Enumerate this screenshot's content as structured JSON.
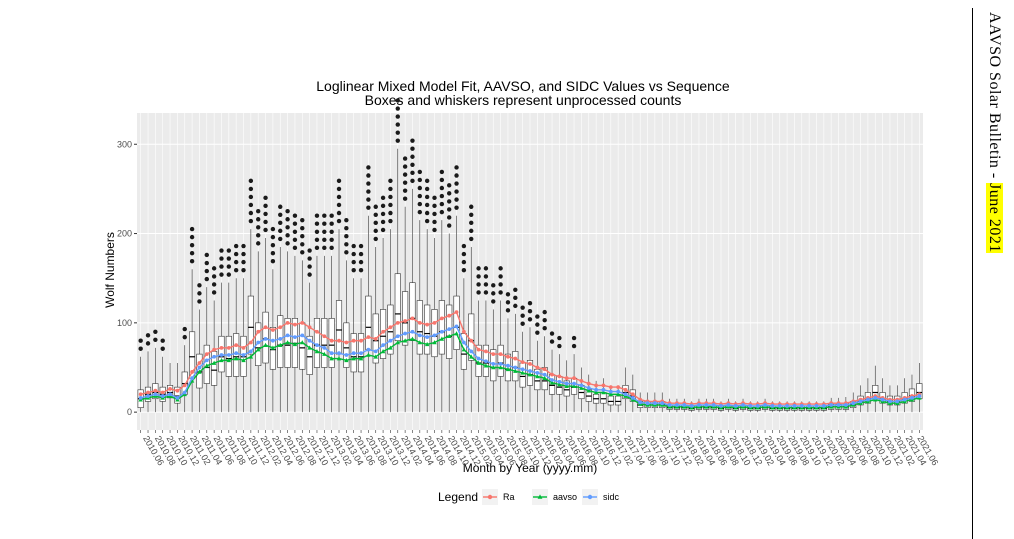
{
  "chart_data": {
    "type": "box",
    "title": "Loglinear Mixed Model Fit, AAVSO, and SIDC Values vs Sequence",
    "subtitle": "Boxes and whiskers represent unprocessed counts",
    "xlabel": "Month by Year (yyyy.mm)",
    "ylabel": "Wolf Numbers",
    "ylim": [
      -20,
      335
    ],
    "yticks": [
      0,
      100,
      200,
      300
    ],
    "grid": true,
    "legend_position": "bottom",
    "legend_title": "Legend",
    "legend": [
      {
        "name": "Ra",
        "color": "#f8766d"
      },
      {
        "name": "aavso",
        "color": "#00ba38"
      },
      {
        "name": "sidc",
        "color": "#619cff"
      }
    ],
    "x_tick_labels": [
      "2010.06",
      "2010.08",
      "2010.10",
      "2010.12",
      "2011.02",
      "2011.04",
      "2011.06",
      "2011.08",
      "2011.10",
      "2011.12",
      "2012.02",
      "2012.04",
      "2012.06",
      "2012.08",
      "2012.10",
      "2012.12",
      "2013.02",
      "2013.04",
      "2013.06",
      "2013.08",
      "2013.10",
      "2013.12",
      "2014.02",
      "2014.04",
      "2014.06",
      "2014.08",
      "2014.10",
      "2014.12",
      "2015.02",
      "2015.04",
      "2015.06",
      "2015.08",
      "2015.10",
      "2015.12",
      "2016.02",
      "2016.04",
      "2016.06",
      "2016.08",
      "2016.10",
      "2016.12",
      "2017.02",
      "2017.04",
      "2017.06",
      "2017.08",
      "2017.10",
      "2017.12",
      "2018.02",
      "2018.04",
      "2018.06",
      "2018.08",
      "2018.10",
      "2018.12",
      "2019.02",
      "2019.04",
      "2019.06",
      "2019.08",
      "2019.10",
      "2019.12",
      "2020.02",
      "2020.04",
      "2020.06",
      "2020.08",
      "2020.10",
      "2020.12",
      "2021.02",
      "2021.04",
      "2021.06"
    ],
    "boxes": {
      "q1": [
        5,
        12,
        15,
        12,
        16,
        10,
        20,
        38,
        27,
        32,
        30,
        45,
        40,
        40,
        40,
        65,
        52,
        55,
        48,
        50,
        50,
        50,
        48,
        42,
        50,
        50,
        50,
        65,
        50,
        45,
        45,
        70,
        55,
        60,
        65,
        80,
        75,
        80,
        65,
        65,
        62,
        65,
        60,
        70,
        48,
        58,
        40,
        40,
        35,
        40,
        35,
        35,
        28,
        30,
        25,
        25,
        20,
        20,
        18,
        20,
        15,
        12,
        10,
        10,
        8,
        8,
        15,
        12,
        5,
        5,
        5,
        5,
        3,
        3,
        3,
        2,
        3,
        3,
        3,
        2,
        3,
        2,
        3,
        2,
        2,
        3,
        2,
        2,
        2,
        2,
        2,
        2,
        2,
        2,
        3,
        3,
        3,
        5,
        8,
        10,
        15,
        10,
        8,
        8,
        10,
        12,
        15
      ],
      "median": [
        15,
        20,
        22,
        20,
        22,
        18,
        32,
        62,
        45,
        50,
        47,
        62,
        60,
        62,
        62,
        95,
        72,
        82,
        70,
        75,
        75,
        77,
        72,
        62,
        75,
        75,
        75,
        92,
        72,
        62,
        62,
        95,
        80,
        85,
        90,
        110,
        100,
        105,
        90,
        88,
        85,
        90,
        85,
        95,
        65,
        80,
        55,
        55,
        50,
        55,
        48,
        50,
        40,
        42,
        35,
        35,
        30,
        28,
        25,
        28,
        22,
        18,
        15,
        15,
        12,
        12,
        22,
        18,
        8,
        8,
        8,
        8,
        5,
        5,
        5,
        4,
        5,
        5,
        5,
        4,
        5,
        4,
        5,
        4,
        4,
        5,
        4,
        4,
        4,
        4,
        4,
        4,
        4,
        4,
        6,
        6,
        6,
        8,
        12,
        15,
        22,
        15,
        12,
        12,
        15,
        18,
        22
      ],
      "q3": [
        25,
        28,
        32,
        28,
        30,
        28,
        45,
        90,
        65,
        75,
        68,
        85,
        85,
        88,
        85,
        130,
        100,
        112,
        95,
        108,
        105,
        105,
        100,
        85,
        105,
        105,
        105,
        125,
        100,
        88,
        88,
        130,
        110,
        115,
        120,
        155,
        135,
        145,
        125,
        120,
        115,
        125,
        120,
        130,
        88,
        110,
        75,
        75,
        70,
        75,
        65,
        68,
        55,
        58,
        48,
        50,
        42,
        40,
        35,
        38,
        30,
        25,
        20,
        22,
        18,
        18,
        30,
        25,
        12,
        12,
        12,
        12,
        8,
        8,
        8,
        7,
        8,
        8,
        8,
        7,
        8,
        7,
        8,
        7,
        7,
        8,
        7,
        7,
        7,
        7,
        7,
        7,
        7,
        7,
        9,
        9,
        10,
        12,
        18,
        22,
        30,
        22,
        18,
        18,
        22,
        26,
        32
      ],
      "upper": [
        62,
        68,
        72,
        62,
        55,
        55,
        75,
        160,
        115,
        140,
        125,
        145,
        145,
        150,
        150,
        205,
        180,
        195,
        160,
        185,
        180,
        175,
        170,
        145,
        175,
        175,
        175,
        205,
        170,
        150,
        150,
        220,
        185,
        195,
        205,
        295,
        230,
        250,
        215,
        205,
        195,
        215,
        200,
        220,
        150,
        185,
        125,
        125,
        115,
        125,
        105,
        110,
        90,
        95,
        80,
        85,
        70,
        65,
        58,
        65,
        50,
        42,
        35,
        38,
        30,
        30,
        50,
        42,
        22,
        22,
        22,
        22,
        15,
        15,
        15,
        12,
        15,
        15,
        15,
        12,
        15,
        12,
        15,
        12,
        12,
        15,
        12,
        12,
        12,
        12,
        12,
        12,
        12,
        12,
        16,
        16,
        17,
        22,
        30,
        38,
        52,
        38,
        30,
        30,
        38,
        42,
        55
      ]
    },
    "series": [
      {
        "name": "Ra",
        "values": [
          20,
          22,
          24,
          22,
          26,
          24,
          30,
          45,
          55,
          65,
          70,
          72,
          72,
          75,
          72,
          78,
          90,
          95,
          92,
          95,
          100,
          98,
          100,
          95,
          90,
          85,
          80,
          80,
          78,
          80,
          80,
          84,
          82,
          90,
          95,
          100,
          102,
          105,
          100,
          98,
          100,
          105,
          108,
          112,
          90,
          80,
          70,
          68,
          65,
          65,
          62,
          60,
          56,
          54,
          50,
          48,
          42,
          40,
          38,
          38,
          35,
          32,
          30,
          30,
          28,
          28,
          25,
          20,
          14,
          12,
          12,
          12,
          10,
          10,
          10,
          9,
          10,
          10,
          10,
          9,
          10,
          9,
          10,
          9,
          9,
          10,
          9,
          9,
          9,
          9,
          9,
          9,
          9,
          9,
          10,
          10,
          10,
          12,
          14,
          16,
          18,
          16,
          14,
          14,
          16,
          18,
          20
        ]
      },
      {
        "name": "aavso",
        "values": [
          14,
          16,
          18,
          16,
          18,
          14,
          20,
          35,
          45,
          52,
          55,
          58,
          58,
          60,
          58,
          62,
          70,
          75,
          72,
          75,
          78,
          76,
          78,
          72,
          68,
          65,
          60,
          60,
          58,
          60,
          60,
          64,
          62,
          68,
          72,
          78,
          80,
          82,
          78,
          76,
          78,
          82,
          85,
          88,
          70,
          62,
          55,
          52,
          50,
          50,
          48,
          46,
          44,
          42,
          40,
          38,
          33,
          31,
          29,
          29,
          27,
          24,
          22,
          22,
          20,
          20,
          18,
          14,
          9,
          8,
          8,
          8,
          6,
          6,
          6,
          5,
          6,
          6,
          6,
          5,
          6,
          5,
          6,
          5,
          5,
          6,
          5,
          5,
          5,
          5,
          5,
          5,
          5,
          5,
          6,
          6,
          6,
          8,
          10,
          12,
          14,
          12,
          10,
          10,
          12,
          14,
          16
        ]
      },
      {
        "name": "sidc",
        "values": [
          16,
          18,
          20,
          18,
          20,
          16,
          22,
          38,
          50,
          58,
          62,
          64,
          64,
          66,
          64,
          68,
          78,
          82,
          80,
          82,
          86,
          84,
          86,
          80,
          75,
          72,
          66,
          66,
          64,
          66,
          66,
          70,
          68,
          75,
          80,
          85,
          88,
          90,
          86,
          84,
          86,
          90,
          93,
          96,
          78,
          68,
          60,
          57,
          54,
          54,
          52,
          50,
          48,
          46,
          44,
          42,
          36,
          34,
          32,
          32,
          30,
          27,
          25,
          25,
          23,
          23,
          20,
          16,
          11,
          10,
          10,
          10,
          8,
          8,
          8,
          7,
          8,
          8,
          8,
          7,
          8,
          7,
          8,
          7,
          7,
          8,
          7,
          7,
          7,
          7,
          7,
          7,
          7,
          7,
          8,
          8,
          8,
          10,
          12,
          14,
          16,
          14,
          12,
          12,
          14,
          16,
          18
        ]
      }
    ]
  },
  "sidebar": {
    "text_plain": "AAVSO Solar Bulletin",
    "text_separator": " - ",
    "text_highlight": "June 2021"
  }
}
